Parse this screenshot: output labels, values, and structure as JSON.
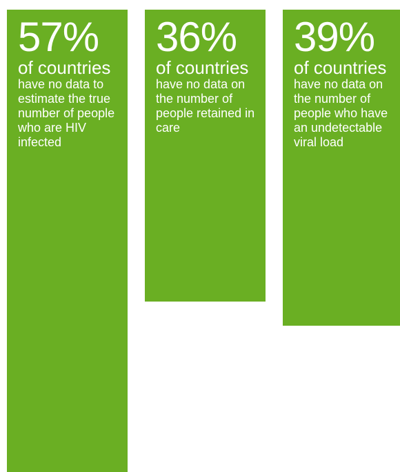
{
  "colors": {
    "bar": "#6aaf23",
    "text": "#ffffff"
  },
  "chart_data": {
    "type": "bar",
    "title": "",
    "categories": [
      "have no data to estimate the true number of people who are HIV infected",
      "have no data on the number of people retained in care",
      "have no data on the number of people who have an undetectable viral load"
    ],
    "values": [
      57,
      36,
      39
    ],
    "unit": "%",
    "ylim": [
      0,
      57
    ],
    "labels": [
      {
        "value_text": "57%",
        "subtitle": "of countries",
        "description": "have no data to estimate the true number of people who are HIV infected"
      },
      {
        "value_text": "36%",
        "subtitle": "of countries",
        "description": "have no data on the number of people retained in care"
      },
      {
        "value_text": "39%",
        "subtitle": "of countries",
        "description": "have no data on the number of people who have an undetectable viral load"
      }
    ]
  }
}
